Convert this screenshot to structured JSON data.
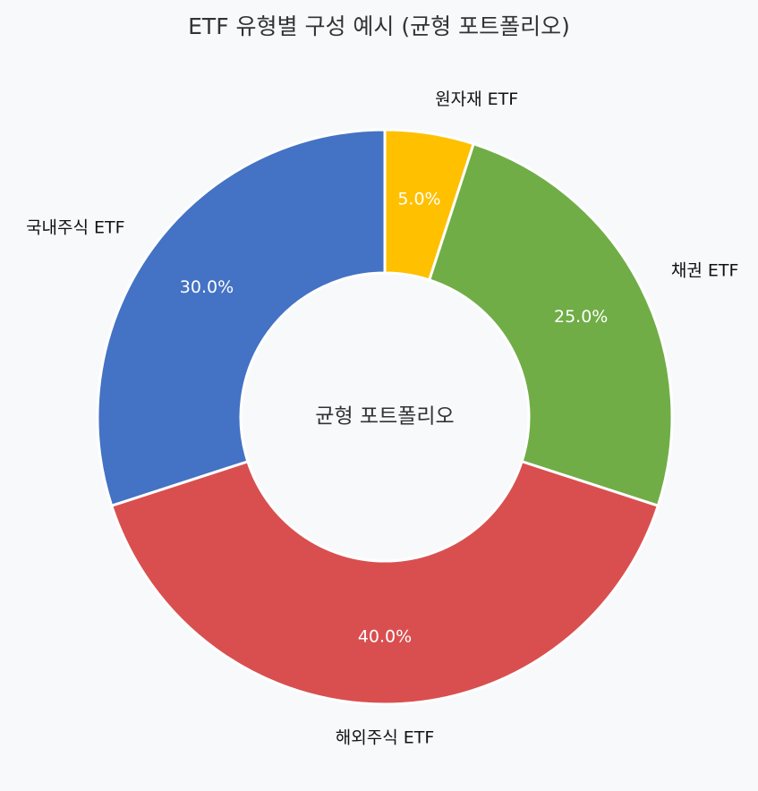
{
  "chart_data": {
    "type": "pie",
    "donut": true,
    "title": "ETF 유형별 구성 예시 (균형 포트폴리오)",
    "center_text": "균형 포트폴리오",
    "slices": [
      {
        "label": "원자재 ETF",
        "value": 5.0,
        "pct_label": "5.0%",
        "color": "#ffc000"
      },
      {
        "label": "채권 ETF",
        "value": 25.0,
        "pct_label": "25.0%",
        "color": "#70ad47"
      },
      {
        "label": "해외주식 ETF",
        "value": 40.0,
        "pct_label": "40.0%",
        "color": "#d94f4f"
      },
      {
        "label": "국내주식 ETF",
        "value": 30.0,
        "pct_label": "30.0%",
        "color": "#4472c4"
      }
    ],
    "start_angle": "12 o'clock",
    "direction": "clockwise",
    "legend": "none"
  }
}
